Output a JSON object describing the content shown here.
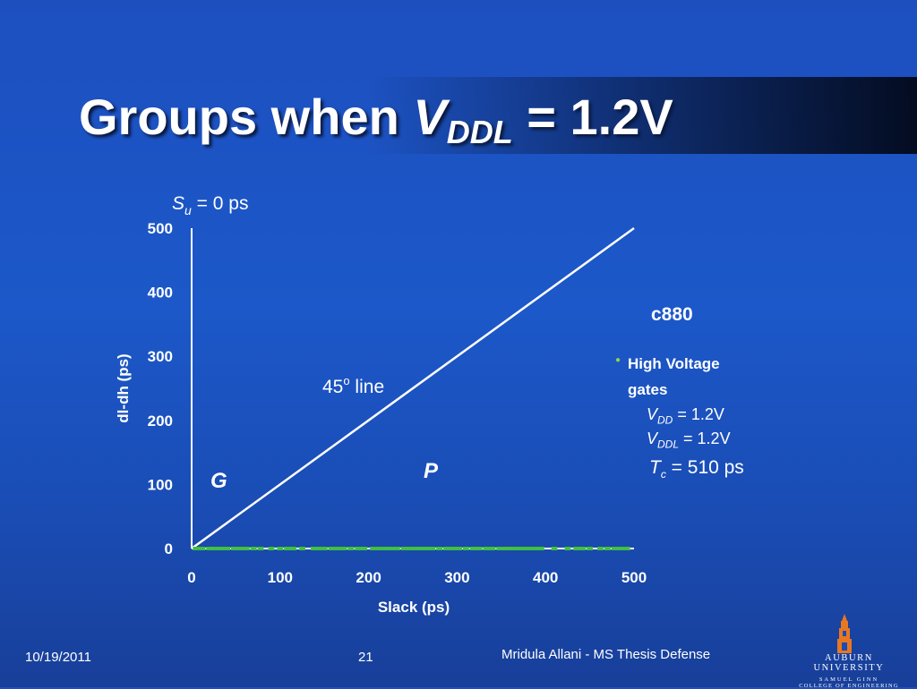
{
  "slide": {
    "title_prefix": "Groups when ",
    "title_var": "V",
    "title_sub": "DDL",
    "title_suffix": " = 1.2V"
  },
  "chart_data": {
    "type": "scatter",
    "title": "",
    "xlabel": "Slack (ps)",
    "ylabel": "dl-dh (ps)",
    "xlim": [
      0,
      500
    ],
    "ylim": [
      0,
      500
    ],
    "x_ticks": [
      "0",
      "100",
      "200",
      "300",
      "400",
      "500"
    ],
    "y_ticks": [
      "0",
      "100",
      "200",
      "300",
      "400",
      "500"
    ],
    "grid": false,
    "reference_line": {
      "from": [
        0,
        0
      ],
      "to": [
        500,
        500
      ],
      "label_value": "45",
      "label_sup": "o",
      "label_word": " line"
    },
    "top_label": {
      "var": "S",
      "sub": "u",
      "rest": " = 0 ps"
    },
    "region_labels": [
      "G",
      "P"
    ],
    "series": [
      {
        "color": "#3fbf3f",
        "marker": "dash",
        "x": [
          5,
          12,
          20,
          27,
          34,
          40,
          48,
          55,
          62,
          70,
          78,
          90,
          100,
          108,
          115,
          125,
          138,
          145,
          150,
          158,
          165,
          172,
          180,
          188,
          195,
          205,
          212,
          218,
          225,
          232,
          240,
          246,
          252,
          258,
          265,
          272,
          280,
          288,
          295,
          302,
          310,
          318,
          325,
          333,
          340,
          348,
          355,
          362,
          368,
          375,
          382,
          388,
          395,
          410,
          425,
          435,
          442,
          450,
          462,
          470,
          478,
          485,
          492
        ],
        "y": [
          0,
          0,
          0,
          0,
          0,
          0,
          0,
          0,
          0,
          0,
          0,
          0,
          0,
          0,
          0,
          0,
          0,
          0,
          0,
          0,
          0,
          0,
          0,
          0,
          0,
          0,
          0,
          0,
          0,
          0,
          0,
          0,
          0,
          0,
          0,
          0,
          0,
          0,
          0,
          0,
          0,
          0,
          0,
          0,
          0,
          0,
          0,
          0,
          0,
          0,
          0,
          0,
          0,
          0,
          0,
          0,
          0,
          0,
          0,
          0,
          0,
          0,
          0
        ]
      }
    ]
  },
  "side_panel": {
    "circuit": "c880",
    "bullet": "High Voltage gates",
    "vdd_var": "V",
    "vdd_sub": "DD",
    "vdd_val": " = 1.2V",
    "vddl_var": "V",
    "vddl_sub": "DDL",
    "vddl_val": " = 1.2V",
    "tc_var": "T",
    "tc_sub": "c",
    "tc_val": " = 510 ps"
  },
  "footer": {
    "date": "10/19/2011",
    "page": "21",
    "author": "Mridula Allani - MS Thesis Defense"
  },
  "logo": {
    "university": "AUBURN UNIVERSITY",
    "line1": "SAMUEL GINN",
    "line2": "COLLEGE OF ENGINEERING"
  }
}
